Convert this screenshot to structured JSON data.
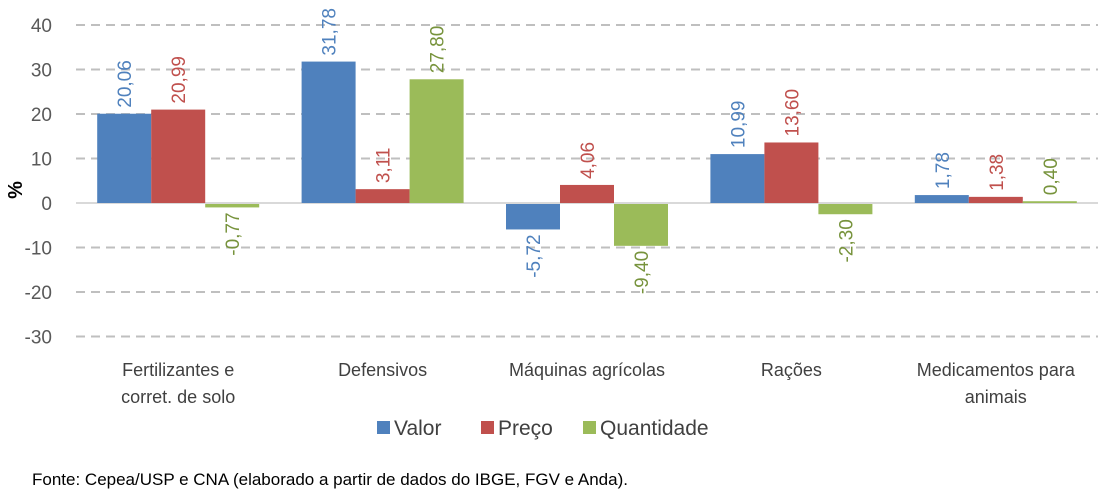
{
  "chart_data": {
    "type": "bar",
    "title": "",
    "xlabel": "",
    "ylabel": "%",
    "ylim": [
      -30,
      40
    ],
    "yticks": [
      40,
      30,
      20,
      10,
      0,
      -10,
      -20,
      -30
    ],
    "grid": true,
    "legend_position": "bottom",
    "categories": [
      [
        "Fertilizantes e",
        "corret. de solo"
      ],
      [
        "Defensivos"
      ],
      [
        "Máquinas agrícolas"
      ],
      [
        "Rações"
      ],
      [
        "Medicamentos para",
        "animais"
      ]
    ],
    "series": [
      {
        "name": "Valor",
        "color": "#4F81BD",
        "label_color": "#4F81BD",
        "values": [
          20.06,
          31.78,
          -5.72,
          10.99,
          1.78
        ],
        "labels": [
          "20,06",
          "31,78",
          "-5,72",
          "10,99",
          "1,78"
        ]
      },
      {
        "name": "Preço",
        "color": "#C0504D",
        "label_color": "#C0504D",
        "values": [
          20.99,
          3.11,
          4.06,
          13.6,
          1.38
        ],
        "labels": [
          "20,99",
          "3,11",
          "4,06",
          "13,60",
          "1,38"
        ]
      },
      {
        "name": "Quantidade",
        "color": "#9BBB59",
        "label_color": "#77933C",
        "values": [
          -0.77,
          27.8,
          -9.4,
          -2.3,
          0.4
        ],
        "labels": [
          "-0,77",
          "27,80",
          "-9,40",
          "-2,30",
          "0,40"
        ]
      }
    ]
  },
  "source": "Fonte: Cepea/USP e CNA (elaborado a partir de dados do IBGE, FGV e Anda)."
}
